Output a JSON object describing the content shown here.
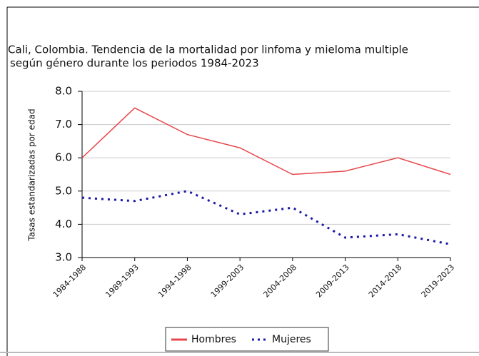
{
  "chart_data": {
    "type": "line",
    "title": "Cali, Colombia. Tendencia de la mortalidad por linfoma y mieloma multiple",
    "subtitle": "según género durante los periodos 1984-2023",
    "y_label": "Tasas estandarizadas por edad",
    "categories": [
      "1984-1988",
      "1989-1993",
      "1994-1998",
      "1999-2003",
      "2004-2008",
      "2009-2013",
      "2014-2018",
      "2019-2023"
    ],
    "series": [
      {
        "name": "Hombres",
        "color": "#e8474c",
        "style": "solid",
        "values": [
          6.0,
          7.5,
          6.7,
          6.3,
          5.5,
          5.6,
          6.0,
          5.5
        ]
      },
      {
        "name": "Mujeres",
        "color": "#1a1aa6",
        "style": "dotted",
        "values": [
          4.8,
          4.7,
          5.0,
          4.3,
          4.5,
          3.6,
          3.7,
          3.4
        ]
      }
    ],
    "ylim": [
      3,
      8
    ],
    "yticks": [
      {
        "value": 3,
        "label": "3.0"
      },
      {
        "value": 4,
        "label": "4.0"
      },
      {
        "value": 5,
        "label": "5.0"
      },
      {
        "value": 6,
        "label": "6.0"
      },
      {
        "value": 7,
        "label": "7.0"
      },
      {
        "value": 8,
        "label": "8.0"
      }
    ],
    "grid": true,
    "legend": "bottom"
  }
}
